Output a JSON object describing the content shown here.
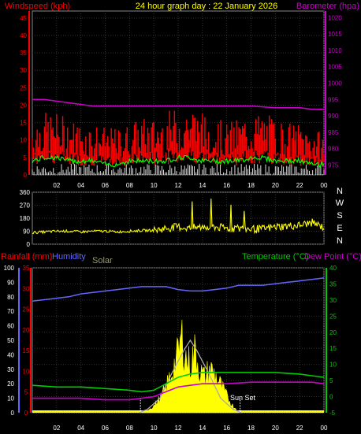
{
  "header": {
    "left": "Windspeed (kph)",
    "center": "24 hour graph day : 22 January 2026",
    "right": "Barometer (hpa)"
  },
  "compass": [
    "N",
    "W",
    "S",
    "E",
    "N"
  ],
  "legend3": {
    "rain": "Rainfall (mm)",
    "humidity": "Humidity",
    "solar": "Solar",
    "temp": "Temperature (°C)",
    "dew": "Dew Point (°C)"
  },
  "sunset_label": "Sun Set",
  "colors": {
    "wind": "#ff0000",
    "gust": "#ff0000",
    "avg_wind": "#00ff00",
    "barometer": "#cc00cc",
    "direction": "#ffff00",
    "humidity": "#6666ff",
    "temperature": "#00cc00",
    "dewpoint": "#cc00cc",
    "solar": "#ffff00",
    "solar_max": "#aaaaaa",
    "rain": "#ff0000",
    "grid": "#333333",
    "axis": "#bbbbbb"
  },
  "chart_data": [
    {
      "type": "line",
      "name": "wind-barometer",
      "x_ticks": [
        "02",
        "04",
        "06",
        "08",
        "10",
        "12",
        "14",
        "16",
        "18",
        "20",
        "22",
        "00"
      ],
      "y_left_ticks": [
        0,
        5,
        10,
        15,
        20,
        25,
        30,
        35,
        40,
        45
      ],
      "y_left_range": [
        0,
        47
      ],
      "y_right_ticks": [
        975,
        980,
        985,
        990,
        995,
        1000,
        1005,
        1010,
        1015,
        1020
      ],
      "y_right_range": [
        972,
        1022
      ],
      "barometer": {
        "x": [
          0,
          1,
          2,
          3,
          4,
          5,
          6,
          8,
          10,
          12,
          14,
          16,
          18,
          20,
          22,
          23,
          24
        ],
        "y": [
          995,
          995,
          994.5,
          994,
          993.5,
          993,
          993,
          993,
          993,
          993,
          993,
          993,
          993,
          992.5,
          992.5,
          992,
          992
        ]
      },
      "wind_profile": {
        "x": [
          0,
          1,
          2,
          3,
          4,
          5,
          6,
          7,
          8,
          9,
          10,
          11,
          12,
          13,
          14,
          15,
          16,
          17,
          18,
          19,
          20,
          21,
          22,
          23,
          24
        ],
        "gust_base": [
          11,
          12,
          12,
          11,
          10,
          10,
          9,
          9,
          10,
          11,
          11,
          12,
          13,
          14,
          12,
          11,
          10,
          11,
          12,
          12,
          11,
          10,
          10,
          9,
          8
        ],
        "avg": [
          4,
          5,
          5,
          4,
          4,
          4,
          3,
          3,
          4,
          4,
          4,
          4,
          5,
          5,
          4,
          4,
          4,
          4,
          5,
          5,
          4,
          4,
          4,
          3,
          3
        ]
      }
    },
    {
      "type": "line",
      "name": "wind-direction",
      "y_ticks": [
        0,
        90,
        180,
        270,
        360
      ],
      "y_range": [
        0,
        360
      ],
      "direction": {
        "x": [
          0,
          1,
          2,
          3,
          4,
          5,
          6,
          7,
          8,
          9,
          10,
          11,
          12,
          13,
          14,
          15,
          16,
          17,
          18,
          19,
          20,
          21,
          22,
          23,
          24
        ],
        "y": [
          80,
          85,
          90,
          90,
          85,
          90,
          90,
          85,
          90,
          95,
          95,
          110,
          120,
          110,
          120,
          120,
          110,
          110,
          105,
          105,
          120,
          125,
          130,
          150,
          115
        ]
      }
    },
    {
      "type": "line",
      "name": "temperature-humidity-solar",
      "y_left_outer_ticks": [
        0,
        10,
        20,
        30,
        40,
        50,
        60,
        70,
        80,
        90,
        100
      ],
      "y_left_inner_ticks": [
        0,
        5,
        10,
        15,
        20,
        25,
        30,
        35
      ],
      "y_right_ticks": [
        -5,
        0,
        5,
        10,
        15,
        20,
        25,
        30,
        35,
        40
      ],
      "temp_range": [
        -5,
        40
      ],
      "humidity": {
        "x": [
          0,
          1,
          2,
          3,
          4,
          5,
          6,
          7,
          8,
          9,
          10,
          11,
          12,
          13,
          14,
          15,
          16,
          17,
          18,
          19,
          20,
          21,
          22,
          23,
          24
        ],
        "y": [
          77,
          78,
          79,
          80,
          82,
          83,
          84,
          85,
          86,
          87,
          87,
          87,
          85,
          84,
          84,
          85,
          86,
          88,
          88,
          88,
          89,
          90,
          91,
          92,
          93
        ]
      },
      "temperature": {
        "x": [
          0,
          2,
          4,
          6,
          8,
          9,
          10,
          11,
          12,
          13,
          14,
          16,
          18,
          20,
          22,
          23,
          24
        ],
        "y": [
          3.5,
          3,
          3,
          2.5,
          2,
          1.5,
          2,
          4,
          6,
          7,
          7.5,
          7.5,
          7.5,
          7.5,
          7,
          6.5,
          6
        ]
      },
      "dewpoint": {
        "x": [
          0,
          2,
          4,
          6,
          8,
          9,
          10,
          11,
          12,
          13,
          14,
          16,
          18,
          20,
          22,
          23,
          24
        ],
        "y": [
          -0.5,
          -0.5,
          -0.5,
          -1,
          -1,
          -0.5,
          0,
          1.5,
          3,
          3.5,
          4,
          4,
          4.5,
          4.5,
          4.5,
          4.5,
          4
        ]
      },
      "solar_max": {
        "x": [
          8.8,
          9.5,
          10.5,
          11.5,
          12.5,
          13,
          13.5,
          14.5,
          15.5,
          16.5,
          17.2
        ],
        "y": [
          0,
          5,
          20,
          55,
          87,
          100,
          87,
          55,
          20,
          5,
          0
        ]
      },
      "solar": {
        "x": [
          8.8,
          9.5,
          10,
          10.5,
          11,
          11.5,
          12,
          12.3,
          12.6,
          13,
          13.4,
          13.8,
          14.2,
          14.6,
          15,
          15.5,
          16,
          16.5,
          17
        ],
        "y": [
          0,
          2,
          5,
          10,
          18,
          30,
          42,
          55,
          40,
          35,
          45,
          30,
          25,
          32,
          28,
          20,
          12,
          5,
          1
        ]
      },
      "sunrise_hour": 8.9,
      "sunset_hour": 17.1
    }
  ]
}
